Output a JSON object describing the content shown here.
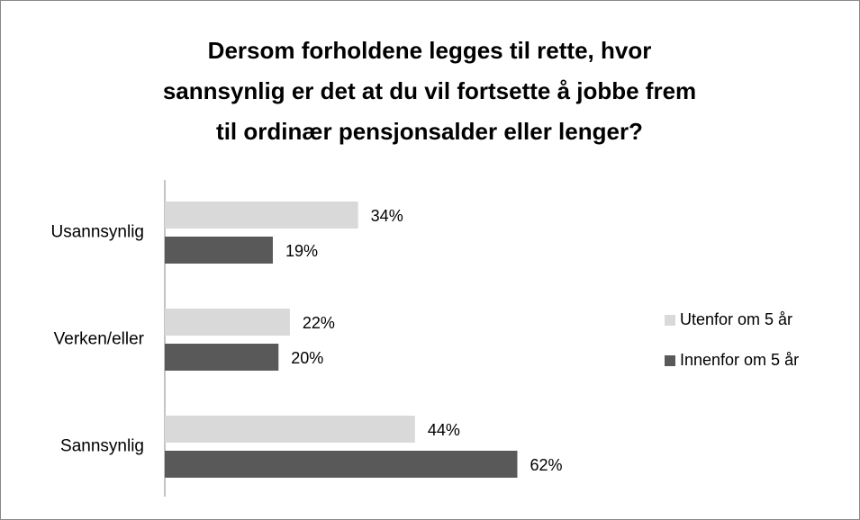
{
  "chart_data": {
    "type": "barh",
    "title": [
      "Dersom forholdene legges til rette, hvor",
      "sannsynlig er det at du vil fortsette å jobbe frem",
      "til ordinær pensjonsalder eller lenger?"
    ],
    "categories": [
      "Usannsynlig",
      "Verken/eller",
      "Sannsynlig"
    ],
    "series": [
      {
        "name": "Utenfor om 5 år",
        "color": "#d9d9d9",
        "values": [
          34,
          22,
          44
        ],
        "value_labels": [
          "34%",
          "22%",
          "44%"
        ]
      },
      {
        "name": "Innenfor om 5 år",
        "color": "#595959",
        "values": [
          19,
          20,
          62
        ],
        "value_labels": [
          "19%",
          "20%",
          "62%"
        ]
      }
    ],
    "xlim": [
      0,
      70
    ],
    "legend": "right"
  }
}
